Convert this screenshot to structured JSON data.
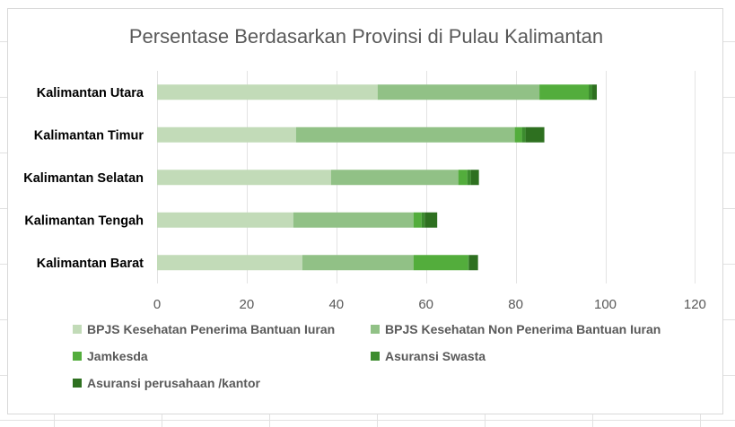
{
  "chart_data": {
    "type": "bar",
    "orientation": "horizontal",
    "stacked": true,
    "title": "Persentase Berdasarkan Provinsi di Pulau Kalimantan",
    "xlabel": "",
    "ylabel": "",
    "xlim": [
      0,
      120
    ],
    "xticks": [
      0,
      20,
      40,
      60,
      80,
      100,
      120
    ],
    "categories": [
      "Kalimantan Utara",
      "Kalimantan Timur",
      "Kalimantan Selatan",
      "Kalimantan Tengah",
      "Kalimantan Barat"
    ],
    "series": [
      {
        "name": "BPJS Kesehatan Penerima Bantuan Iuran",
        "color": "#c2dbb8",
        "values": [
          49.2,
          31.0,
          38.8,
          30.4,
          32.4
        ]
      },
      {
        "name": "BPJS Kesehatan Non Penerima Bantuan Iuran",
        "color": "#91c186",
        "values": [
          36.1,
          48.8,
          28.4,
          26.8,
          24.8
        ]
      },
      {
        "name": "Jamkesda",
        "color": "#53ad3c",
        "values": [
          11.0,
          1.6,
          2.0,
          1.8,
          12.2
        ]
      },
      {
        "name": "Asuransi Swasta",
        "color": "#3c8c2e",
        "values": [
          0.8,
          0.8,
          0.8,
          0.7,
          0.2
        ]
      },
      {
        "name": "Asuransi perusahaan /kantor",
        "color": "#2e7020",
        "values": [
          1.0,
          4.2,
          1.8,
          2.8,
          2.0
        ]
      }
    ],
    "grid": "vertical",
    "legend_position": "bottom"
  }
}
